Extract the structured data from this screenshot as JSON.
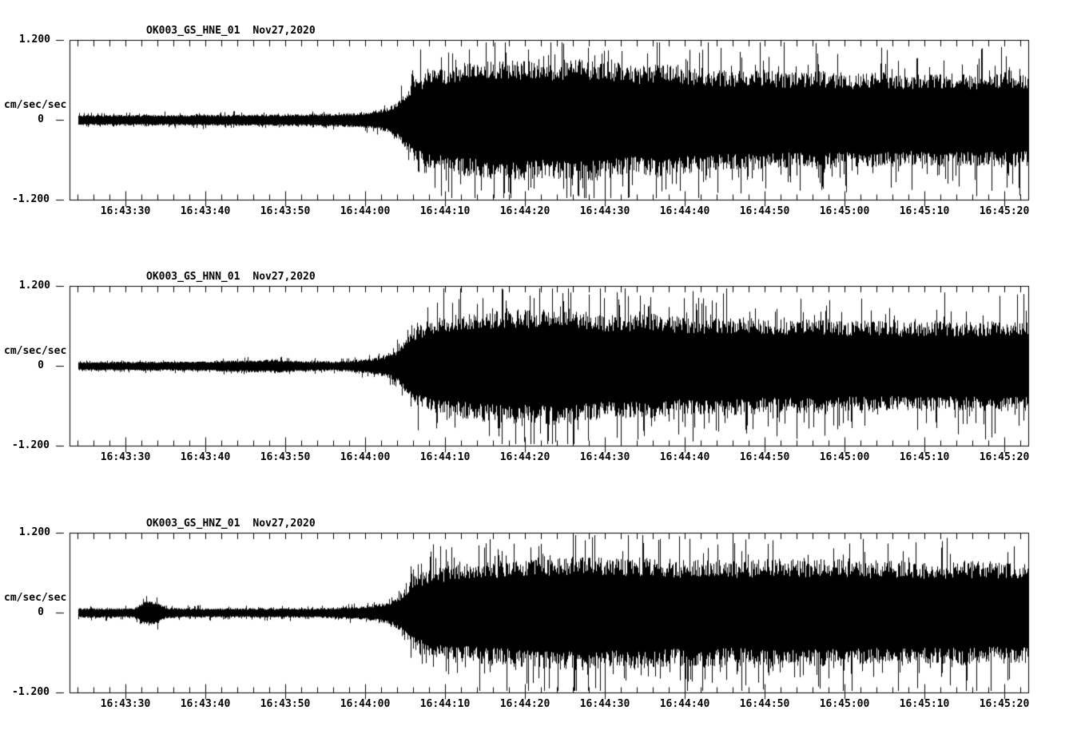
{
  "app": {
    "kind": "seismogram-waveform-display",
    "background_color": "#ffffff",
    "trace_color": "#000000"
  },
  "axis": {
    "y_top_label": "1.200",
    "y_zero_label": "0",
    "y_bottom_label": "-1.200",
    "y_units": "cm/sec/sec",
    "time_ticks": [
      "16:43:30",
      "16:43:40",
      "16:43:50",
      "16:44:00",
      "16:44:10",
      "16:44:20",
      "16:44:30",
      "16:44:40",
      "16:44:50",
      "16:45:00",
      "16:45:10",
      "16:45:20"
    ]
  },
  "panels": [
    {
      "station": "OK003_GS_HNE_01",
      "date": "Nov27,2020"
    },
    {
      "station": "OK003_GS_HNN_01",
      "date": "Nov27,2020"
    },
    {
      "station": "OK003_GS_HNZ_01",
      "date": "Nov27,2020"
    }
  ],
  "chart_data": {
    "type": "line",
    "subtype": "seismogram",
    "grid": false,
    "legend": "none",
    "x_start_time": "16:43:23",
    "x_end_time": "16:45:23",
    "x_span_seconds": 120,
    "major_tick_seconds": 10,
    "minor_tick_seconds": 2,
    "ylim": [
      -1.2,
      1.2
    ],
    "ylabel": "cm/sec/sec",
    "event_onset_time": "16:44:00",
    "peak_amplitude_approx": 1.15,
    "panels": [
      {
        "id": "OK003_GS_HNE_01",
        "seed": 11,
        "envelope": [
          [
            0,
            0.065
          ],
          [
            20,
            0.07
          ],
          [
            30,
            0.075
          ],
          [
            36,
            0.09
          ],
          [
            38,
            0.11
          ],
          [
            40,
            0.16
          ],
          [
            41,
            0.25
          ],
          [
            42,
            0.35
          ],
          [
            43,
            0.5
          ],
          [
            45,
            0.62
          ],
          [
            48,
            0.68
          ],
          [
            52,
            0.74
          ],
          [
            56,
            0.76
          ],
          [
            60,
            0.72
          ],
          [
            63,
            0.78
          ],
          [
            67,
            0.74
          ],
          [
            71,
            0.67
          ],
          [
            74,
            0.72
          ],
          [
            78,
            0.66
          ],
          [
            82,
            0.62
          ],
          [
            86,
            0.64
          ],
          [
            90,
            0.6
          ],
          [
            94,
            0.62
          ],
          [
            98,
            0.58
          ],
          [
            102,
            0.6
          ],
          [
            106,
            0.57
          ],
          [
            110,
            0.59
          ],
          [
            114,
            0.57
          ],
          [
            117,
            0.6
          ],
          [
            120,
            0.58
          ]
        ]
      },
      {
        "id": "OK003_GS_HNN_01",
        "seed": 22,
        "envelope": [
          [
            0,
            0.055
          ],
          [
            15,
            0.06
          ],
          [
            22,
            0.075
          ],
          [
            26,
            0.085
          ],
          [
            29,
            0.065
          ],
          [
            33,
            0.06
          ],
          [
            36,
            0.08
          ],
          [
            38,
            0.1
          ],
          [
            40,
            0.15
          ],
          [
            41,
            0.22
          ],
          [
            42,
            0.33
          ],
          [
            43,
            0.48
          ],
          [
            45,
            0.58
          ],
          [
            48,
            0.64
          ],
          [
            52,
            0.7
          ],
          [
            55,
            0.73
          ],
          [
            58,
            0.7
          ],
          [
            61,
            0.75
          ],
          [
            64,
            0.7
          ],
          [
            68,
            0.64
          ],
          [
            72,
            0.67
          ],
          [
            76,
            0.62
          ],
          [
            80,
            0.6
          ],
          [
            84,
            0.62
          ],
          [
            88,
            0.58
          ],
          [
            92,
            0.6
          ],
          [
            96,
            0.56
          ],
          [
            100,
            0.58
          ],
          [
            104,
            0.55
          ],
          [
            108,
            0.57
          ],
          [
            112,
            0.55
          ],
          [
            116,
            0.57
          ],
          [
            120,
            0.56
          ]
        ]
      },
      {
        "id": "OK003_GS_HNZ_01",
        "seed": 33,
        "envelope": [
          [
            0,
            0.06
          ],
          [
            8,
            0.06
          ],
          [
            9,
            0.13
          ],
          [
            10,
            0.16
          ],
          [
            11,
            0.13
          ],
          [
            12,
            0.07
          ],
          [
            15,
            0.06
          ],
          [
            30,
            0.06
          ],
          [
            36,
            0.08
          ],
          [
            38,
            0.1
          ],
          [
            40,
            0.14
          ],
          [
            41,
            0.2
          ],
          [
            42,
            0.3
          ],
          [
            43,
            0.45
          ],
          [
            45,
            0.55
          ],
          [
            48,
            0.6
          ],
          [
            52,
            0.64
          ],
          [
            56,
            0.68
          ],
          [
            60,
            0.7
          ],
          [
            64,
            0.72
          ],
          [
            68,
            0.68
          ],
          [
            72,
            0.7
          ],
          [
            76,
            0.66
          ],
          [
            80,
            0.68
          ],
          [
            84,
            0.64
          ],
          [
            88,
            0.7
          ],
          [
            92,
            0.66
          ],
          [
            96,
            0.68
          ],
          [
            100,
            0.64
          ],
          [
            104,
            0.66
          ],
          [
            108,
            0.63
          ],
          [
            112,
            0.66
          ],
          [
            116,
            0.63
          ],
          [
            120,
            0.65
          ]
        ]
      }
    ]
  }
}
